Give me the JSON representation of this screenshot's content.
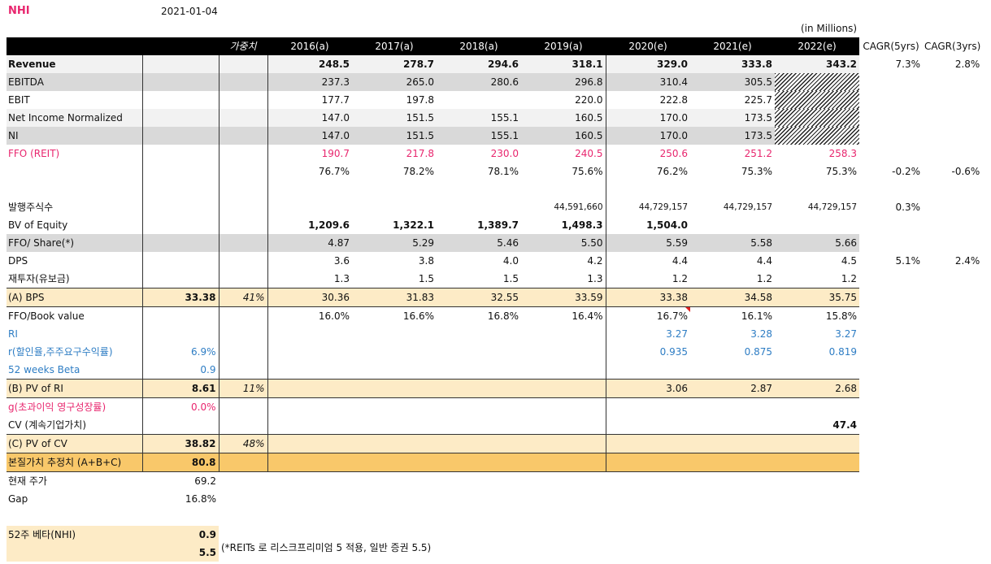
{
  "header": {
    "ticker": "NHI",
    "date": "2021-01-04",
    "units": "(in Millions)"
  },
  "columns": {
    "weight": "가중치",
    "years": [
      "2016(a)",
      "2017(a)",
      "2018(a)",
      "2019(a)",
      "2020(e)",
      "2021(e)",
      "2022(e)"
    ],
    "cagr5": "CAGR(5yrs)",
    "cagr3": "CAGR(3yrs)"
  },
  "rows": {
    "revenue": {
      "label": "Revenue",
      "vals": [
        "248.5",
        "278.7",
        "294.6",
        "318.1",
        "329.0",
        "333.8",
        "343.2"
      ],
      "cagr5": "7.3%",
      "cagr3": "2.8%"
    },
    "ebitda": {
      "label": "EBITDA",
      "vals": [
        "237.3",
        "265.0",
        "280.6",
        "296.8",
        "310.4",
        "305.5"
      ]
    },
    "ebit": {
      "label": "EBIT",
      "vals": [
        "177.7",
        "197.8",
        "220.0",
        "222.8",
        "225.7"
      ]
    },
    "nin": {
      "label": "Net Income Normalized",
      "vals": [
        "147.0",
        "151.5",
        "155.1",
        "160.5",
        "170.0",
        "173.5"
      ]
    },
    "ni": {
      "label": "NI",
      "vals": [
        "147.0",
        "151.5",
        "155.1",
        "160.5",
        "170.0",
        "173.5"
      ]
    },
    "ffo": {
      "label": "FFO (REIT)",
      "vals": [
        "190.7",
        "217.8",
        "230.0",
        "240.5",
        "250.6",
        "251.2",
        "258.3"
      ]
    },
    "ffo_margin": {
      "vals": [
        "76.7%",
        "78.2%",
        "78.1%",
        "75.6%",
        "76.2%",
        "75.3%",
        "75.3%"
      ],
      "cagr5": "-0.2%",
      "cagr3": "-0.6%"
    },
    "shares": {
      "label": "발행주식수",
      "vals": [
        "44,591,660",
        "44,729,157",
        "44,729,157",
        "44,729,157"
      ],
      "cagr5": "0.3%"
    },
    "bv": {
      "label": "BV of Equity",
      "vals": [
        "1,209.6",
        "1,322.1",
        "1,389.7",
        "1,498.3",
        "1,504.0"
      ]
    },
    "ffops": {
      "label": "FFO/ Share(*)",
      "vals": [
        "4.87",
        "5.29",
        "5.46",
        "5.50",
        "5.59",
        "5.58",
        "5.66"
      ]
    },
    "dps": {
      "label": "DPS",
      "vals": [
        "3.6",
        "3.8",
        "4.0",
        "4.2",
        "4.4",
        "4.4",
        "4.5"
      ],
      "cagr5": "5.1%",
      "cagr3": "2.4%"
    },
    "reinvest": {
      "label": "재투자(유보금)",
      "vals": [
        "1.3",
        "1.5",
        "1.5",
        "1.3",
        "1.2",
        "1.2",
        "1.2"
      ]
    },
    "bps": {
      "label": "(A) BPS",
      "value": "33.38",
      "weight": "41%",
      "vals": [
        "30.36",
        "31.83",
        "32.55",
        "33.59",
        "33.38",
        "34.58",
        "35.75"
      ]
    },
    "ffobook": {
      "label": "FFO/Book value",
      "vals": [
        "16.0%",
        "16.6%",
        "16.8%",
        "16.4%",
        "16.7%",
        "16.1%",
        "15.8%"
      ]
    },
    "ri": {
      "label": "RI",
      "vals": [
        "3.27",
        "3.28",
        "3.27"
      ]
    },
    "r": {
      "label": "r(할인율,주주요구수익률)",
      "value": "6.9%",
      "vals": [
        "0.935",
        "0.875",
        "0.819"
      ]
    },
    "beta52": {
      "label": "52 weeks Beta",
      "value": "0.9"
    },
    "pvri": {
      "label": "(B) PV of RI",
      "value": "8.61",
      "weight": "11%",
      "vals": [
        "3.06",
        "2.87",
        "2.68"
      ]
    },
    "g": {
      "label": "g(초과이익 영구성장률)",
      "value": "0.0%"
    },
    "cv": {
      "label": "CV (계속기업가치)",
      "val2022": "47.4"
    },
    "pvcv": {
      "label": "(C) PV of CV",
      "value": "38.82",
      "weight": "48%"
    },
    "intrinsic": {
      "label": "본질가치 추정치 (A+B+C)",
      "value": "80.8"
    },
    "price": {
      "label": "현재 주가",
      "value": "69.2"
    },
    "gap": {
      "label": "Gap",
      "value": "16.8%"
    },
    "beta_nhi": {
      "label": "52주 베타(NHI)",
      "value": "0.9"
    },
    "risk_premium": {
      "value": "5.5"
    }
  },
  "note": "(*REITs 로 리스크프리미엄 5 적용, 일반 증권 5.5)",
  "colors": {
    "accent_pink": "#e8266e",
    "accent_blue": "#2e7dc4",
    "gray_row": "#d9d9d9",
    "tan_row": "#fdebc6",
    "gold_row": "#f9c86a"
  }
}
